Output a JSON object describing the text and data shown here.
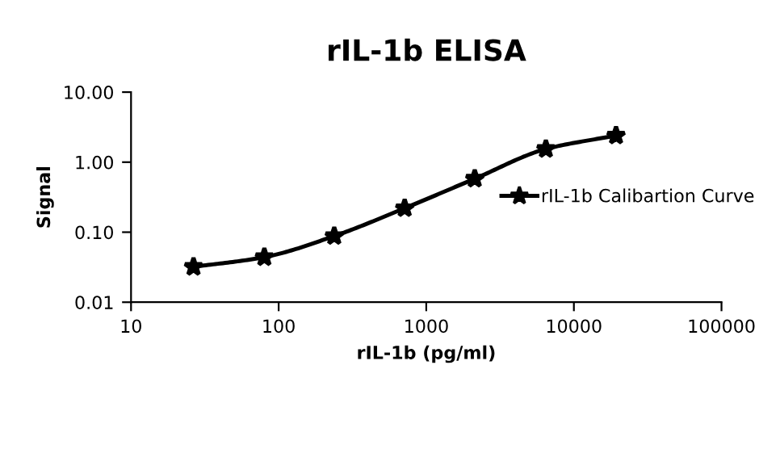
{
  "chart_data": {
    "type": "line",
    "title": "rIL-1b ELISA",
    "xlabel": "rIL-1b (pg/ml)",
    "ylabel": "Signal",
    "log": "xy",
    "x": [
      26.5,
      80,
      238,
      714,
      2130,
      6460,
      19300
    ],
    "series": [
      {
        "name": "rIL-1b Calibartion Curve",
        "color": "#000000",
        "values": [
          0.032,
          0.044,
          0.088,
          0.22,
          0.58,
          1.54,
          2.4
        ]
      }
    ],
    "xlim": [
      10,
      100000
    ],
    "xticks": [
      10,
      100,
      1000,
      10000,
      100000
    ],
    "ylim": [
      0.01,
      10
    ],
    "yticks": [
      {
        "value": 0.01,
        "label": "0.01"
      },
      {
        "value": 0.1,
        "label": "0.10"
      },
      {
        "value": 1,
        "label": "1.00"
      },
      {
        "value": 10,
        "label": "10.00"
      }
    ],
    "grid": false,
    "legend": "right",
    "marker": "star",
    "line_style": "solid"
  }
}
